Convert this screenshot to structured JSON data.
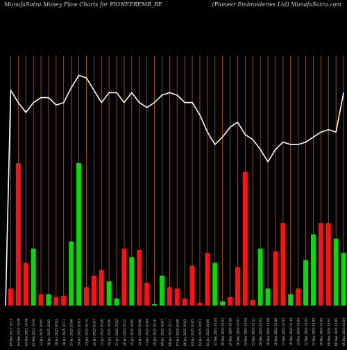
{
  "header": {
    "left": "MunafaSutra  Money Flow  Charts for PIONEEREMB_BE",
    "right": "(Pioneer Embroideries Ltd) MunafaSutra.com"
  },
  "colors": {
    "background": "#000000",
    "up": "#00dd00",
    "down": "#ff1111",
    "line": "#ffffff",
    "grid": "#b5620c"
  },
  "chart_data": {
    "type": "bar",
    "y_range": [
      0,
      100
    ],
    "grid": "vertical",
    "categories": [
      "05 Feb 2025",
      "04 Feb 2025",
      "03 Feb 2025",
      "01 Feb 2025",
      "31 Jan 2025",
      "30 Jan 2025",
      "29 Jan 2025",
      "28 Jan 2025",
      "27 Jan 2025",
      "24 Jan 2025",
      "23 Jan 2025",
      "22 Jan 2025",
      "21 Jan 2025",
      "20 Jan 2025",
      "17 Jan 2025",
      "16 Jan 2025",
      "15 Jan 2025",
      "14 Jan 2025",
      "13 Jan 2025",
      "10 Jan 2025",
      "09 Jan 2025",
      "08 Jan 2025",
      "07 Jan 2025",
      "06 Jan 2025",
      "03 Jan 2025",
      "02 Jan 2025",
      "01 Jan 2025",
      "31 Dec 2024",
      "30 Dec 2024",
      "27 Dec 2024",
      "26 Dec 2024",
      "24 Dec 2024",
      "23 Dec 2024",
      "20 Dec 2024",
      "19 Dec 2024",
      "18 Dec 2024",
      "17 Dec 2024",
      "16 Dec 2024",
      "13 Dec 2024",
      "12 Dec 2024",
      "11 Dec 2024",
      "10 Dec 2024",
      "09 Dec 2024",
      "06 Dec 2024",
      "05 Dec 2024"
    ],
    "tick_labels": [
      "05 Feb 2025 16:15",
      "04 Feb 2025 16:09",
      "03 Feb 2025 16:08",
      "01 Feb 2025 16:02",
      "31 Jan 2025 16:05",
      "30 Jan 2025 16:02",
      "29 Jan 2025 16:03",
      "28 Jan 2025 16:11",
      "27 Jan 2025 16:06",
      "24 Jan 2025 16:03",
      "23 Jan 2025 16:14",
      "22 Jan 2025 16:07",
      "21 Jan 2025 16:09",
      "20 Jan 2025 16:06",
      "17 Jan 2025 16:02",
      "16 Jan 2025 16:12",
      "15 Jan 2025 16:05",
      "14 Jan 2025 16:06",
      "13 Jan 2025 16:04",
      "10 Jan 2025 16:10",
      "09 Jan 2025 16:07",
      "08 Jan 2025 16:11",
      "07 Jan 2025 16:08",
      "06 Jan 2025 16:03",
      "03 Jan 2025 16:05",
      "02 Jan 2025 16:01",
      "01 Jan 2025 16:06",
      "31 Dec 2024 16:04",
      "30 Dec 2024 16:02",
      "27 Dec 2024 16:09",
      "26 Dec 2024 16:07",
      "24 Dec 2024 16:05",
      "23 Dec 2024 16:11",
      "20 Dec 2024 16:02",
      "19 Dec 2024 16:08",
      "18 Dec 2024 16:06",
      "17 Dec 2024 16:03",
      "16 Dec 2024 16:10",
      "13 Dec 2024 16:04",
      "12 Dec 2024 16:05",
      "11 Dec 2024 16:09",
      "10 Dec 2024 16:02",
      "09 Dec 2024 16:07",
      "06 Dec 2024 16:06",
      "05 Dec 2024 16:03"
    ],
    "bar_values": [
      12,
      100,
      30,
      40,
      8,
      8,
      6,
      7,
      45,
      100,
      13,
      21,
      25,
      17,
      5,
      40,
      34,
      39,
      16,
      1,
      21,
      13,
      12,
      5,
      28,
      2,
      37,
      30,
      3,
      6,
      27,
      94,
      4,
      40,
      12,
      38,
      58,
      8,
      12,
      32,
      50,
      58,
      58,
      47,
      37
    ],
    "bar_colors": [
      "red",
      "red",
      "red",
      "green",
      "red",
      "green",
      "red",
      "red",
      "green",
      "green",
      "red",
      "red",
      "red",
      "green",
      "green",
      "red",
      "green",
      "red",
      "red",
      "green",
      "green",
      "red",
      "red",
      "red",
      "red",
      "red",
      "red",
      "green",
      "green",
      "red",
      "red",
      "red",
      "red",
      "green",
      "green",
      "red",
      "red",
      "green",
      "red",
      "green",
      "green",
      "red",
      "red",
      "green",
      "green"
    ],
    "line_values": [
      93,
      88,
      84,
      88,
      90,
      90,
      87,
      88,
      94,
      99,
      98,
      93,
      88,
      92,
      92,
      88,
      92,
      88,
      86,
      88,
      91,
      92,
      91,
      88,
      88,
      83,
      76,
      71,
      74,
      78,
      80,
      75,
      73,
      69,
      64,
      69,
      72,
      71,
      71,
      72,
      74,
      76,
      77,
      76,
      92
    ]
  }
}
